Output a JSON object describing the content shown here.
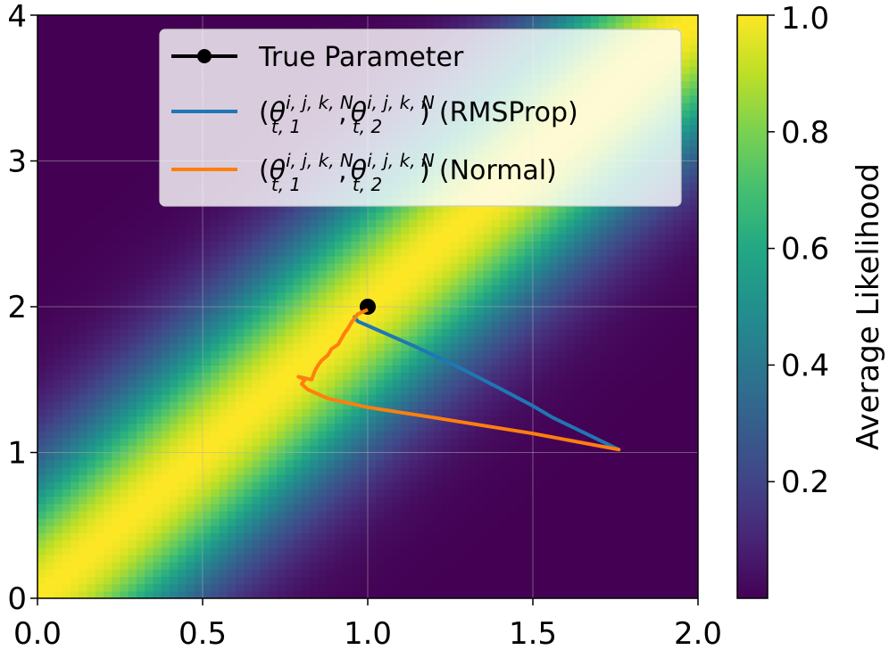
{
  "chart_data": {
    "type": "heatmap",
    "title": "",
    "xlabel": "",
    "ylabel": "",
    "xlim": [
      0.0,
      2.0
    ],
    "ylim": [
      0,
      4
    ],
    "x_ticks": [
      "0.0",
      "0.5",
      "1.0",
      "1.5",
      "2.0"
    ],
    "x_tick_values": [
      0.0,
      0.5,
      1.0,
      1.5,
      2.0
    ],
    "y_ticks": [
      "0",
      "1",
      "2",
      "3",
      "4"
    ],
    "y_tick_values": [
      0,
      1,
      2,
      3,
      4
    ],
    "grid": true,
    "colormap": "viridis",
    "heatmap": {
      "description": "Average likelihood surface peaking along the ridge y = 2x",
      "ridge_slope": 2.0,
      "ridge_width": 0.28,
      "min": 0.0,
      "max": 1.0
    },
    "colorbar": {
      "label": "Average Likelihood",
      "ticks": [
        "0.2",
        "0.4",
        "0.6",
        "0.8",
        "1.0"
      ],
      "tick_values": [
        0.2,
        0.4,
        0.6,
        0.8,
        1.0
      ],
      "range": [
        0.0,
        1.0
      ]
    },
    "legend_position": "top-center",
    "true_parameter": {
      "x": 1.0,
      "y": 2.0
    },
    "series": [
      {
        "name": "True Parameter",
        "type": "marker",
        "color": "#000000",
        "points": [
          [
            1.0,
            2.0
          ]
        ]
      },
      {
        "name": "RMSProp",
        "legend_label": {
          "open": "(",
          "t1": "θ",
          "sup1": "i, j, k, N",
          "sub1": "t, 1",
          "comma": ",",
          "t2": "θ",
          "sup2": "i, j, k, N",
          "sub2": "t, 2",
          "close": ")",
          "suffix": "(RMSProp)"
        },
        "color": "#1f77b4",
        "points": [
          [
            1.76,
            1.02
          ],
          [
            1.66,
            1.13
          ],
          [
            1.56,
            1.24
          ],
          [
            1.5,
            1.32
          ],
          [
            1.4,
            1.44
          ],
          [
            1.28,
            1.58
          ],
          [
            1.14,
            1.73
          ],
          [
            1.02,
            1.85
          ],
          [
            0.97,
            1.9
          ],
          [
            0.96,
            1.93
          ]
        ]
      },
      {
        "name": "Normal",
        "legend_label": {
          "open": "(",
          "t1": "θ",
          "sup1": "i, j, k, N",
          "sub1": "t, 1",
          "comma": ",",
          "t2": "θ",
          "sup2": "i, j, k, N",
          "sub2": "t, 2",
          "close": ")",
          "suffix": "(Normal)"
        },
        "color": "#ff7f0e",
        "points": [
          [
            1.76,
            1.02
          ],
          [
            1.5,
            1.13
          ],
          [
            1.2,
            1.24
          ],
          [
            1.0,
            1.31
          ],
          [
            0.88,
            1.37
          ],
          [
            0.82,
            1.43
          ],
          [
            0.8,
            1.47
          ],
          [
            0.81,
            1.5
          ],
          [
            0.79,
            1.52
          ],
          [
            0.83,
            1.5
          ],
          [
            0.84,
            1.56
          ],
          [
            0.85,
            1.6
          ],
          [
            0.86,
            1.63
          ],
          [
            0.88,
            1.67
          ],
          [
            0.89,
            1.71
          ],
          [
            0.91,
            1.74
          ],
          [
            0.92,
            1.78
          ],
          [
            0.93,
            1.82
          ],
          [
            0.94,
            1.85
          ],
          [
            0.95,
            1.89
          ],
          [
            0.96,
            1.92
          ],
          [
            0.97,
            1.95
          ],
          [
            0.99,
            1.97
          ],
          [
            1.0,
            1.98
          ]
        ]
      }
    ]
  }
}
